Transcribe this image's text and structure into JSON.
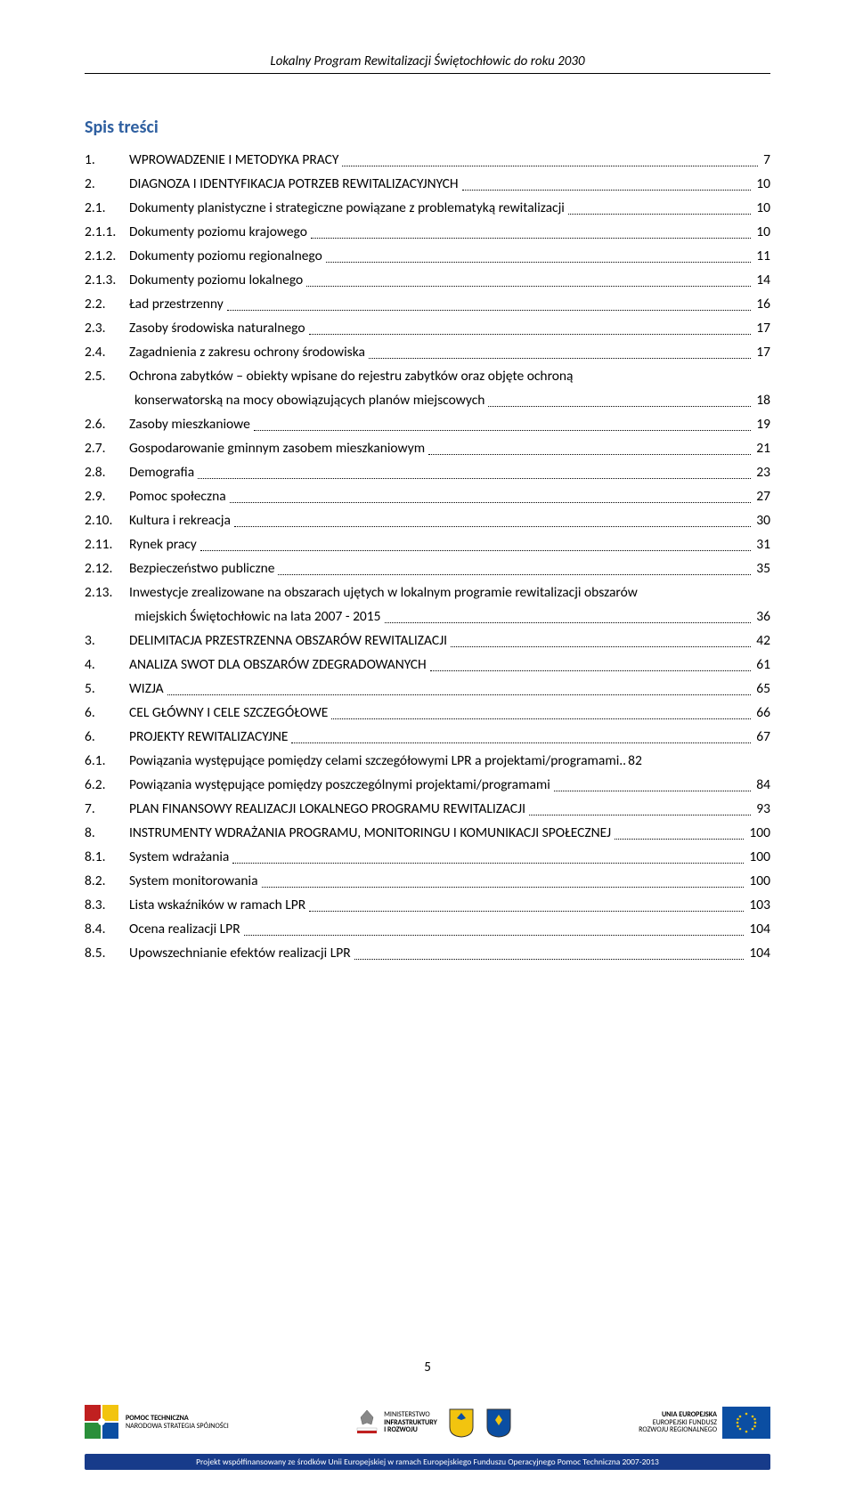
{
  "header": "Lokalny Program Rewitalizacji Świętochłowic do roku 2030",
  "sectionTitle": "Spis treści",
  "pageNumber": "5",
  "entries": [
    {
      "n": "1.",
      "t": "WPROWADZENIE I METODYKA PRACY",
      "p": "7"
    },
    {
      "n": "2.",
      "t": "DIAGNOZA I IDENTYFIKACJA POTRZEB REWITALIZACYJNYCH",
      "p": "10"
    },
    {
      "n": "2.1.",
      "t": "Dokumenty planistyczne i strategiczne powiązane z problematyką rewitalizacji",
      "p": "10"
    },
    {
      "n": "2.1.1.",
      "t": "Dokumenty poziomu krajowego",
      "p": "10"
    },
    {
      "n": "2.1.2.",
      "t": "Dokumenty poziomu regionalnego",
      "p": "11"
    },
    {
      "n": "2.1.3.",
      "t": "Dokumenty poziomu lokalnego",
      "p": "14"
    },
    {
      "n": "2.2.",
      "t": "Ład przestrzenny",
      "p": "16"
    },
    {
      "n": "2.3.",
      "t": "Zasoby środowiska naturalnego",
      "p": "17"
    },
    {
      "n": "2.4.",
      "t": "Zagadnienia z zakresu ochrony środowiska",
      "p": "17"
    },
    {
      "n": "2.5.",
      "t": "Ochrona zabytków – obiekty wpisane do rejestru zabytków oraz objęte ochroną",
      "p": ""
    },
    {
      "n": "",
      "t": "konserwatorską na mocy obowiązujących planów miejscowych",
      "p": "18",
      "cont": true
    },
    {
      "n": "2.6.",
      "t": "Zasoby mieszkaniowe",
      "p": "19"
    },
    {
      "n": "2.7.",
      "t": "Gospodarowanie gminnym zasobem mieszkaniowym",
      "p": "21"
    },
    {
      "n": "2.8.",
      "t": "Demografia",
      "p": "23"
    },
    {
      "n": "2.9.",
      "t": "Pomoc społeczna",
      "p": "27"
    },
    {
      "n": "2.10.",
      "t": "Kultura i rekreacja",
      "p": "30"
    },
    {
      "n": "2.11.",
      "t": "Rynek pracy",
      "p": "31"
    },
    {
      "n": "2.12.",
      "t": "Bezpieczeństwo publiczne",
      "p": "35"
    },
    {
      "n": "2.13.",
      "t": "Inwestycje zrealizowane na obszarach ujętych w lokalnym programie rewitalizacji obszarów",
      "p": ""
    },
    {
      "n": "",
      "t": "miejskich Świętochłowic na lata 2007 - 2015",
      "p": "36",
      "cont": true
    },
    {
      "n": "3.",
      "t": "DELIMITACJA PRZESTRZENNA OBSZARÓW REWITALIZACJI",
      "p": "42"
    },
    {
      "n": "4.",
      "t": "ANALIZA SWOT DLA OBSZARÓW ZDEGRADOWANYCH",
      "p": "61"
    },
    {
      "n": "5.",
      "t": "WIZJA",
      "p": "65"
    },
    {
      "n": "6.",
      "t": "CEL GŁÓWNY I CELE SZCZEGÓŁOWE",
      "p": "66"
    },
    {
      "n": "6.",
      "t": "PROJEKTY REWITALIZACYJNE",
      "p": "67"
    },
    {
      "n": "6.1.",
      "t": "Powiązania występujące pomiędzy celami szczegółowymi LPR a  projektami/programami",
      "p": "82",
      "nd": true
    },
    {
      "n": "6.2.",
      "t": "Powiązania występujące pomiędzy poszczególnymi projektami/programami",
      "p": "84"
    },
    {
      "n": "7.",
      "t": "PLAN FINANSOWY REALIZACJI LOKALNEGO PROGRAMU REWITALIZACJI",
      "p": "93"
    },
    {
      "n": "8.",
      "t": "INSTRUMENTY WDRAŻANIA PROGRAMU, MONITORINGU I KOMUNIKACJI SPOŁECZNEJ",
      "p": "100"
    },
    {
      "n": "8.1.",
      "t": "System wdrażania",
      "p": "100"
    },
    {
      "n": "8.2.",
      "t": "System monitorowania",
      "p": "100"
    },
    {
      "n": "8.3.",
      "t": "Lista wskaźników w ramach LPR",
      "p": "103"
    },
    {
      "n": "8.4.",
      "t": "Ocena realizacji LPR",
      "p": "104"
    },
    {
      "n": "8.5.",
      "t": "Upowszechnianie efektów realizacji LPR",
      "p": "104"
    }
  ],
  "footer": {
    "logo1": {
      "l1": "POMOC TECHNICZNA",
      "l2": "NARODOWA STRATEGIA SPÓJNOŚCI"
    },
    "logo2": {
      "l1": "MINISTERSTWO",
      "l2": "INFRASTRUKTURY",
      "l3": "I ROZWOJU"
    },
    "logo3": {
      "l1": "UNIA EUROPEJSKA",
      "l2": "EUROPEJSKI FUNDUSZ",
      "l3": "ROZWOJU REGIONALNEGO"
    },
    "bar": "Projekt współfinansowany ze środków Unii Europejskiej w ramach Europejskiego Funduszu Operacyjnego Pomoc Techniczna 2007-2013"
  },
  "colors": {
    "accent": "#2e5fa0",
    "navy": "#173b8a",
    "yellow": "#f2c40f",
    "red": "#c02020",
    "blue": "#0b4ea2"
  }
}
